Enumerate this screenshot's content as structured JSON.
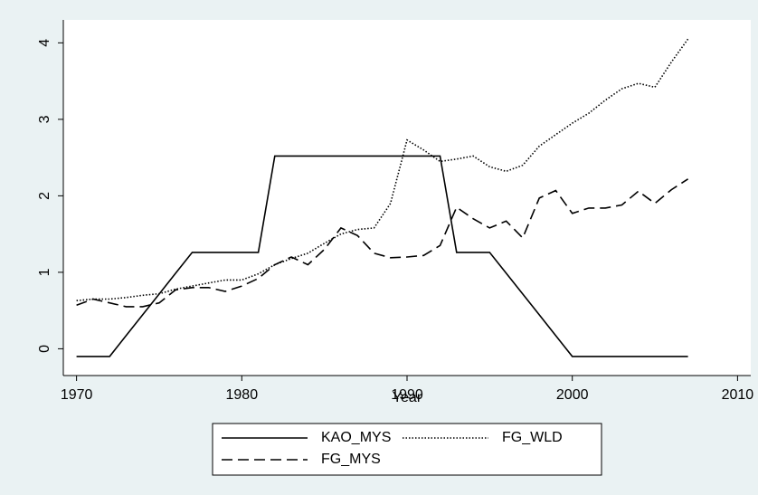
{
  "chart_data": {
    "type": "line",
    "x_label": "Year",
    "x": [
      1970,
      1971,
      1972,
      1973,
      1974,
      1975,
      1976,
      1977,
      1978,
      1979,
      1980,
      1981,
      1982,
      1983,
      1984,
      1985,
      1986,
      1987,
      1988,
      1989,
      1990,
      1991,
      1992,
      1993,
      1994,
      1995,
      1996,
      1997,
      1998,
      1999,
      2000,
      2001,
      2002,
      2003,
      2004,
      2005,
      2006,
      2007
    ],
    "series": [
      {
        "name": "KAO_MYS",
        "color": "#000000",
        "dash": "solid",
        "values": [
          -0.1,
          -0.1,
          -0.1,
          0.172,
          0.444,
          0.716,
          0.988,
          1.26,
          1.26,
          1.26,
          1.26,
          1.26,
          2.52,
          2.52,
          2.52,
          2.52,
          2.52,
          2.52,
          2.52,
          2.52,
          2.52,
          2.52,
          2.52,
          1.26,
          1.26,
          1.26,
          0.988,
          0.716,
          0.444,
          0.172,
          -0.1,
          -0.1,
          -0.1,
          -0.1,
          -0.1,
          -0.1,
          -0.1,
          -0.1
        ]
      },
      {
        "name": "FG_WLD",
        "color": "#000000",
        "dash": "dotted",
        "values": [
          0.63,
          0.65,
          0.65,
          0.67,
          0.7,
          0.72,
          0.78,
          0.82,
          0.86,
          0.9,
          0.9,
          0.98,
          1.1,
          1.18,
          1.25,
          1.38,
          1.5,
          1.56,
          1.58,
          1.9,
          2.73,
          2.6,
          2.45,
          2.48,
          2.52,
          2.38,
          2.32,
          2.4,
          2.65,
          2.8,
          2.95,
          3.08,
          3.25,
          3.4,
          3.47,
          3.42,
          3.75,
          4.05
        ]
      },
      {
        "name": "FG_MYS",
        "color": "#000000",
        "dash": "dashed",
        "values": [
          0.57,
          0.65,
          0.6,
          0.55,
          0.55,
          0.6,
          0.77,
          0.8,
          0.8,
          0.75,
          0.82,
          0.92,
          1.1,
          1.2,
          1.1,
          1.3,
          1.58,
          1.48,
          1.25,
          1.19,
          1.2,
          1.22,
          1.35,
          1.85,
          1.7,
          1.58,
          1.67,
          1.45,
          1.97,
          2.07,
          1.77,
          1.84,
          1.84,
          1.88,
          2.06,
          1.9,
          2.08,
          2.22
        ]
      }
    ],
    "xlim": [
      1969.2,
      2010.8
    ],
    "xticks": [
      1970,
      1980,
      1990,
      2000,
      2010
    ],
    "ylim": [
      -0.35,
      4.3
    ],
    "yticks": [
      0,
      1,
      2,
      3,
      4
    ],
    "grid": false,
    "legend": "bottom"
  }
}
